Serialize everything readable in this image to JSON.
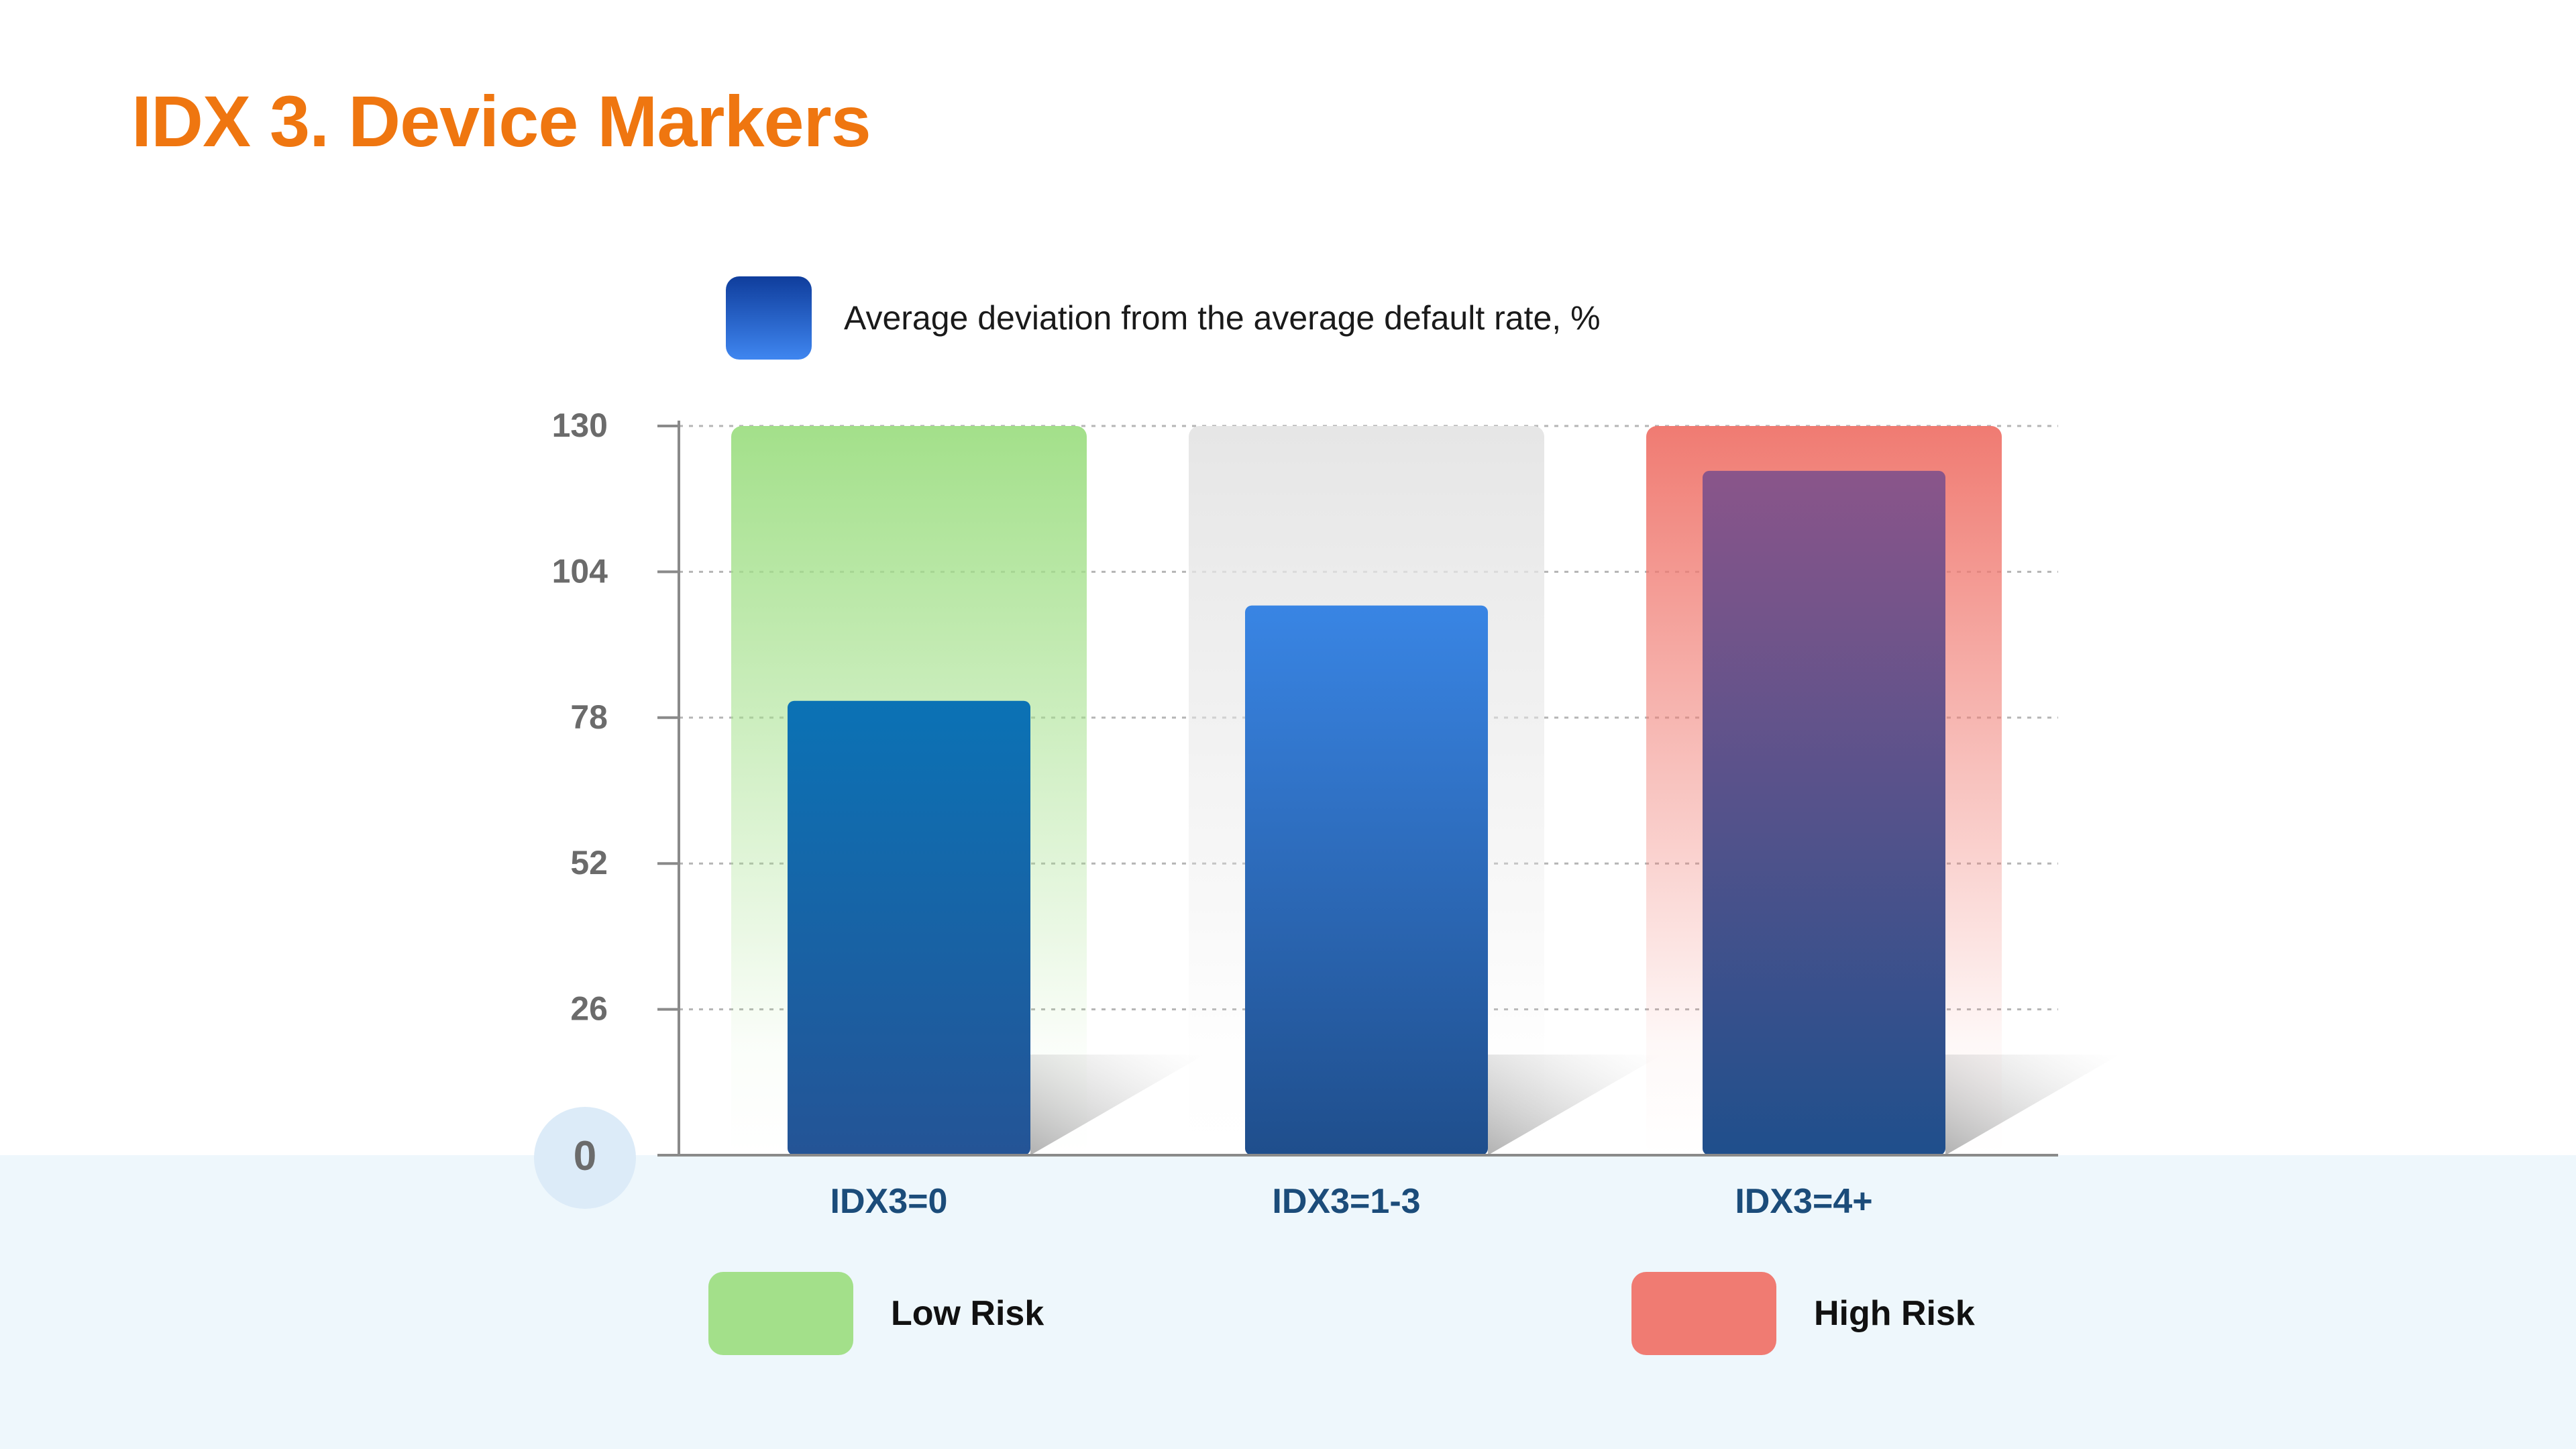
{
  "slide": {
    "title": "IDX 3. Device Markers"
  },
  "legend_top": {
    "label": "Average deviation from the average default rate, %",
    "color": "#2a63d4"
  },
  "legend_bottom": [
    {
      "label": "Low Risk",
      "color": "#a3e08a"
    },
    {
      "label": "High Risk",
      "color": "#f07b72"
    }
  ],
  "chart_data": {
    "type": "bar",
    "title": "",
    "xlabel": "",
    "ylabel": "",
    "categories": [
      "IDX3=0",
      "IDX3=1-3",
      "IDX3=4+"
    ],
    "series": [
      {
        "name": "Average deviation from the average default rate, %",
        "values": [
          81,
          98,
          122
        ]
      }
    ],
    "background_bands": [
      {
        "category": "IDX3=0",
        "risk": "Low Risk",
        "value": 130,
        "color": "#a3e08a"
      },
      {
        "category": "IDX3=1-3",
        "risk": "",
        "value": 130,
        "color": "#e6e6e6"
      },
      {
        "category": "IDX3=4+",
        "risk": "High Risk",
        "value": 130,
        "color": "#f07b72"
      }
    ],
    "bar_colors": [
      {
        "top": "#0b72b5",
        "bottom": "#245496"
      },
      {
        "top": "#3985e4",
        "bottom": "#1f4e8c"
      },
      {
        "top": "#8a558a",
        "bottom": "#1f4f8c"
      }
    ],
    "ylim": [
      0,
      130
    ],
    "yticks": [
      0,
      26,
      52,
      78,
      104,
      130
    ],
    "grid": true,
    "legend_placement": "top-left"
  }
}
